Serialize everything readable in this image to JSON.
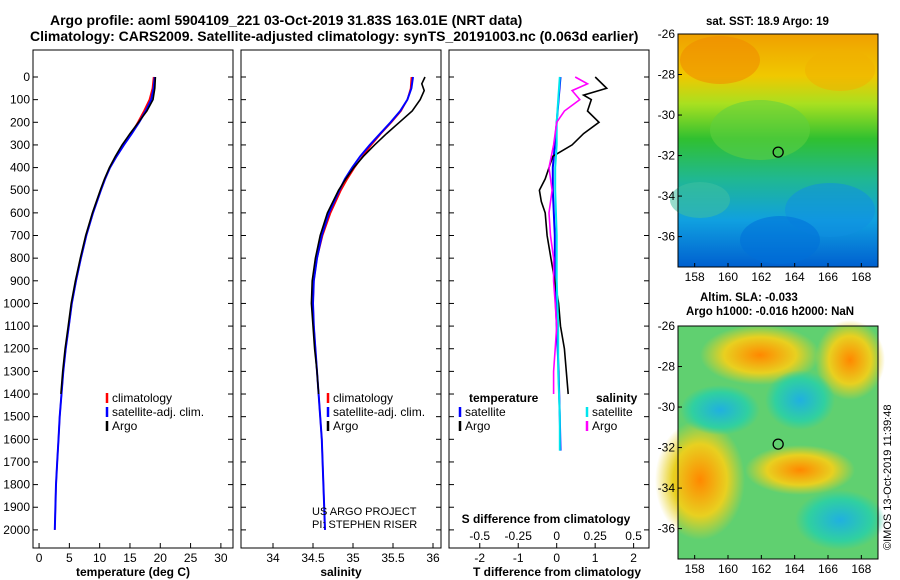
{
  "header": {
    "title_line1": "Argo profile: aoml 5904109_221 03-Oct-2019 31.83S 163.01E (NRT data)",
    "title_line2": "Climatology: CARS2009. Satellite-adjusted climatology: synTS_20191003.nc (0.063d earlier)"
  },
  "map_panels": {
    "sst_title": "sat. SST: 18.9 Argo: 19",
    "sla_title1": "Altim. SLA: -0.033",
    "sla_title2": "Argo h1000: -0.016 h2000: NaN",
    "lat_ticks": [
      "-26",
      "-28",
      "-30",
      "-32",
      "-34",
      "-36"
    ],
    "lon_ticks": [
      "158",
      "160",
      "162",
      "164",
      "166",
      "168"
    ],
    "argo_lon": 163.01,
    "argo_lat": -31.83,
    "lon_range": [
      157,
      169
    ],
    "lat_range": [
      -37.5,
      -26
    ]
  },
  "footer": {
    "project_line1": "US ARGO PROJECT",
    "project_line2": "PI: STEPHEN RISER",
    "imos": "©IMOS 13-Oct-2019 11:39:48"
  },
  "legends": {
    "climatology": "climatology",
    "satellite_adj": "satellite-adj. clim.",
    "argo": "Argo",
    "temperature": "temperature",
    "salinity": "salinity",
    "satellite": "satellite"
  },
  "chart_data": [
    {
      "type": "line",
      "panel": "temperature",
      "xlabel": "temperature (deg C)",
      "ylabel": "",
      "xlim": [
        -1,
        32
      ],
      "ylim": [
        2080,
        0
      ],
      "xticks": [
        "0",
        "5",
        "10",
        "15",
        "20",
        "25",
        "30"
      ],
      "yticks": [
        "0",
        "100",
        "200",
        "300",
        "400",
        "500",
        "600",
        "700",
        "800",
        "900",
        "1000",
        "1100",
        "1200",
        "1300",
        "1400",
        "1500",
        "1600",
        "1700",
        "1800",
        "1900",
        "2000"
      ],
      "series": [
        {
          "name": "climatology",
          "color": "#ff0000",
          "depth": [
            0,
            50,
            100,
            150,
            200,
            250,
            300,
            350,
            400,
            450,
            500,
            600,
            700,
            800,
            900,
            1000,
            1100,
            1200,
            1300,
            1400,
            1500,
            1600,
            1700,
            1800,
            1900,
            2000
          ],
          "values": [
            18.9,
            18.7,
            18.2,
            17.3,
            16.3,
            15.2,
            14.0,
            12.8,
            11.7,
            10.9,
            10.2,
            8.9,
            7.8,
            6.9,
            6.1,
            5.4,
            4.9,
            4.4,
            4.0,
            3.7,
            3.4,
            3.2,
            3.0,
            2.8,
            2.7,
            2.6
          ]
        },
        {
          "name": "satellite-adj. clim.",
          "color": "#0000ff",
          "depth": [
            0,
            50,
            100,
            150,
            200,
            250,
            300,
            350,
            400,
            450,
            500,
            600,
            700,
            800,
            900,
            1000,
            1100,
            1200,
            1300,
            1400,
            1500,
            1600,
            1700,
            1800,
            1900,
            2000
          ],
          "values": [
            19.1,
            18.9,
            18.5,
            17.6,
            16.5,
            15.3,
            14.0,
            12.8,
            11.7,
            10.9,
            10.2,
            8.9,
            7.8,
            6.9,
            6.1,
            5.4,
            4.9,
            4.4,
            4.0,
            3.7,
            3.4,
            3.2,
            3.0,
            2.8,
            2.7,
            2.6
          ]
        },
        {
          "name": "Argo",
          "color": "#000000",
          "depth": [
            0,
            50,
            100,
            150,
            200,
            250,
            300,
            350,
            400,
            450,
            500,
            600,
            700,
            800,
            900,
            1000,
            1100,
            1200,
            1300,
            1400
          ],
          "values": [
            19.2,
            19.1,
            18.8,
            17.8,
            16.4,
            15.0,
            13.7,
            12.6,
            11.6,
            10.8,
            10.1,
            8.8,
            7.7,
            6.8,
            6.0,
            5.3,
            4.8,
            4.3,
            3.9,
            3.6
          ]
        }
      ]
    },
    {
      "type": "line",
      "panel": "salinity",
      "xlabel": "salinity",
      "xlim": [
        33.6,
        36.1
      ],
      "ylim": [
        2080,
        0
      ],
      "xticks": [
        "34",
        "34.5",
        "35",
        "35.5",
        "36"
      ],
      "series": [
        {
          "name": "climatology",
          "color": "#ff0000",
          "depth": [
            0,
            50,
            100,
            150,
            200,
            250,
            300,
            350,
            400,
            450,
            500,
            600,
            700,
            800,
            900,
            1000,
            1100,
            1200,
            1300,
            1400,
            1500,
            1600,
            1700,
            1800,
            1900,
            2000
          ],
          "values": [
            35.73,
            35.72,
            35.68,
            35.6,
            35.48,
            35.35,
            35.23,
            35.12,
            35.02,
            34.93,
            34.85,
            34.72,
            34.62,
            34.55,
            34.51,
            34.5,
            34.51,
            34.53,
            34.55,
            34.57,
            34.59,
            34.61,
            34.62,
            34.63,
            34.64,
            34.65
          ]
        },
        {
          "name": "satellite-adj. clim.",
          "color": "#0000ff",
          "depth": [
            0,
            50,
            100,
            150,
            200,
            250,
            300,
            350,
            400,
            450,
            500,
            600,
            700,
            800,
            900,
            1000,
            1100,
            1200,
            1300,
            1400,
            1500,
            1600,
            1700,
            1800,
            1900,
            2000
          ],
          "values": [
            35.75,
            35.73,
            35.68,
            35.59,
            35.47,
            35.34,
            35.21,
            35.09,
            34.99,
            34.9,
            34.83,
            34.7,
            34.61,
            34.55,
            34.51,
            34.5,
            34.51,
            34.53,
            34.55,
            34.57,
            34.59,
            34.61,
            34.62,
            34.63,
            34.64,
            34.65
          ]
        },
        {
          "name": "Argo",
          "color": "#000000",
          "depth": [
            0,
            30,
            60,
            100,
            150,
            200,
            250,
            300,
            350,
            400,
            450,
            500,
            600,
            700,
            800,
            900,
            1000,
            1100,
            1200,
            1300,
            1400
          ],
          "values": [
            35.9,
            35.86,
            35.89,
            35.84,
            35.74,
            35.58,
            35.42,
            35.27,
            35.13,
            35.01,
            34.91,
            34.82,
            34.68,
            34.59,
            34.53,
            34.49,
            34.48,
            34.5,
            34.52,
            34.55,
            34.57
          ]
        }
      ]
    },
    {
      "type": "line",
      "panel": "difference",
      "xlabel": "T difference from climatology",
      "xlabel2": "S difference from climatology",
      "xlim": [
        -2.8,
        2.4
      ],
      "ylim": [
        2080,
        0
      ],
      "xticks": [
        "-2",
        "-1",
        "0",
        "1",
        "2"
      ],
      "xticks_s": [
        "-0.5",
        "-0.25",
        "0",
        "0.25",
        "0.5"
      ],
      "series": [
        {
          "name": "temperature satellite",
          "color": "#0000ff",
          "depth": [
            0,
            100,
            200,
            300,
            400,
            500,
            700,
            900,
            1100,
            1300,
            1500,
            1650
          ],
          "values": [
            0.1,
            0.05,
            0.0,
            -0.05,
            -0.1,
            -0.1,
            -0.05,
            -0.05,
            0.0,
            0.05,
            0.08,
            0.1
          ]
        },
        {
          "name": "temperature Argo",
          "color": "#000000",
          "depth": [
            0,
            50,
            80,
            100,
            150,
            200,
            250,
            300,
            350,
            400,
            450,
            500,
            550,
            600,
            700,
            800,
            900,
            1000,
            1100,
            1200,
            1300,
            1400
          ],
          "values": [
            1.0,
            1.3,
            0.7,
            0.9,
            0.8,
            1.1,
            0.7,
            0.4,
            -0.1,
            -0.2,
            -0.3,
            -0.45,
            -0.4,
            -0.3,
            -0.25,
            -0.15,
            -0.05,
            0.05,
            0.1,
            0.2,
            0.25,
            0.3
          ]
        },
        {
          "name": "salinity satellite",
          "color": "#00e5ee",
          "depth": [
            0,
            100,
            200,
            300,
            400,
            500,
            700,
            900,
            1100,
            1300,
            1500,
            1650
          ],
          "values": [
            0.02,
            0.01,
            0.0,
            0.0,
            -0.01,
            -0.01,
            0.0,
            0.0,
            0.01,
            0.01,
            0.02,
            0.02
          ]
        },
        {
          "name": "salinity Argo",
          "color": "#ff00ff",
          "depth": [
            0,
            30,
            60,
            100,
            150,
            200,
            300,
            400,
            500,
            600,
            700,
            800,
            900,
            1000,
            1100,
            1200,
            1300,
            1400
          ],
          "values": [
            0.12,
            0.2,
            0.1,
            0.15,
            0.05,
            0.0,
            -0.02,
            -0.05,
            -0.03,
            -0.05,
            -0.04,
            -0.02,
            -0.02,
            -0.01,
            0.0,
            -0.01,
            -0.02,
            -0.02
          ]
        }
      ]
    }
  ]
}
